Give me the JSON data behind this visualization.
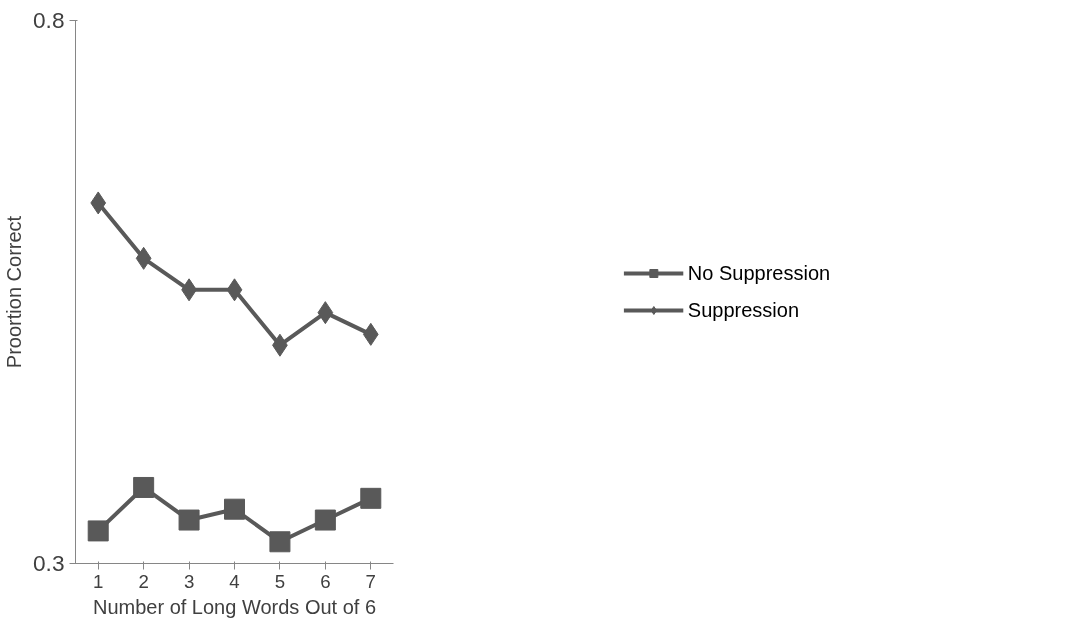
{
  "chart_data": {
    "type": "line",
    "xlabel": "Number of Long Words Out of 6",
    "ylabel": "Proortion Correct",
    "categories": [
      "1",
      "2",
      "3",
      "4",
      "5",
      "6",
      "7"
    ],
    "series": [
      {
        "name": "No Suppression",
        "color": "#595959",
        "marker": "square",
        "values": [
          0.33,
          0.37,
          0.34,
          0.35,
          0.32,
          0.34,
          0.36
        ]
      },
      {
        "name": "Suppression",
        "color": "#595959",
        "marker": "diamond",
        "values": [
          0.632,
          0.581,
          0.552,
          0.552,
          0.501,
          0.531,
          0.511
        ]
      }
    ],
    "ylim": [
      0.3,
      0.8
    ],
    "yticks": [
      0.3,
      0.8
    ],
    "grid": false,
    "legend": "right"
  }
}
